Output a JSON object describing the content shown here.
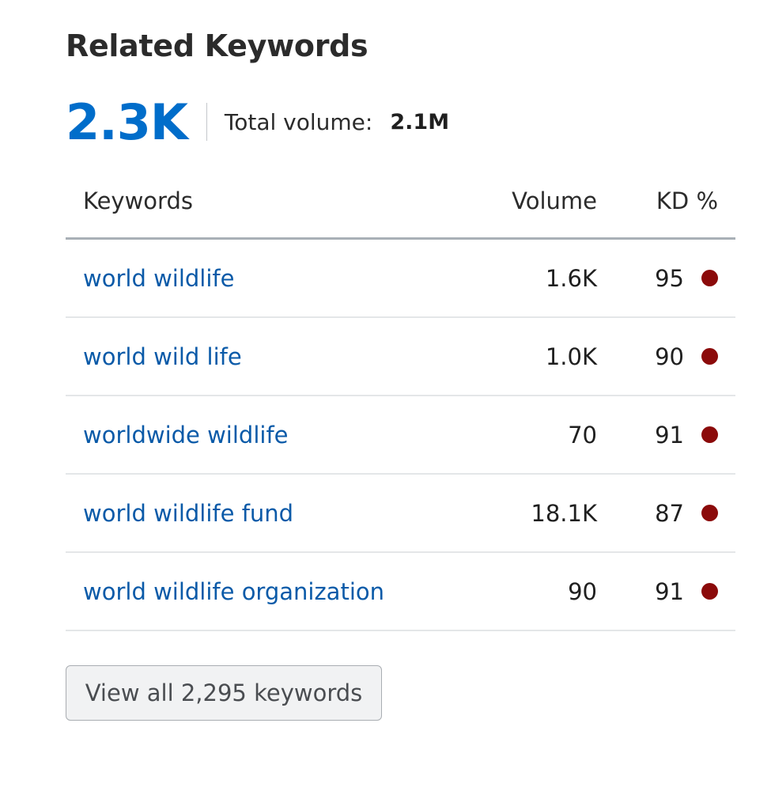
{
  "widget": {
    "title": "Related Keywords",
    "count": "2.3K",
    "total_volume_label": "Total volume:",
    "total_volume_value": "2.1M"
  },
  "table": {
    "headers": {
      "keyword": "Keywords",
      "volume": "Volume",
      "kd": "KD %"
    },
    "rows": [
      {
        "keyword": "world wildlife",
        "volume": "1.6K",
        "kd": "95"
      },
      {
        "keyword": "world wild life",
        "volume": "1.0K",
        "kd": "90"
      },
      {
        "keyword": "worldwide wildlife",
        "volume": "70",
        "kd": "91"
      },
      {
        "keyword": "world wildlife fund",
        "volume": "18.1K",
        "kd": "87"
      },
      {
        "keyword": "world wildlife organization",
        "volume": "90",
        "kd": "91"
      }
    ]
  },
  "footer": {
    "view_all_label": "View all 2,295 keywords"
  },
  "colors": {
    "accent": "#006dca",
    "link": "#0a5aa8",
    "kd_very_hard": "#8b0a0a"
  }
}
